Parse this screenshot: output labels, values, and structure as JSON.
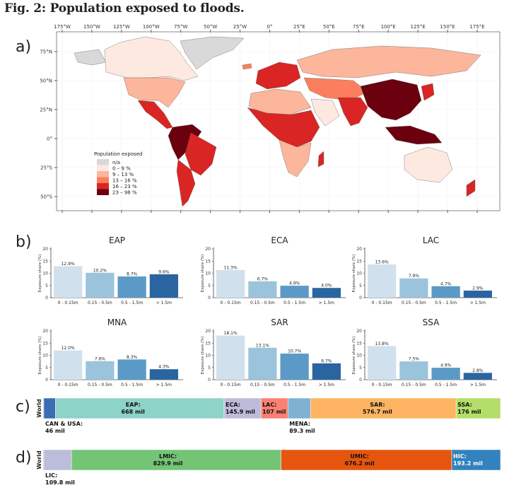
{
  "figure": {
    "title": "Fig. 2: Population exposed to floods.",
    "panel_labels": [
      "a)",
      "b)",
      "c)",
      "d)"
    ]
  },
  "chart_data": [
    {
      "panel": "a",
      "type": "heatmap",
      "subtype": "choropleth-map",
      "title": "",
      "x_ticks": [
        "175°W",
        "150°W",
        "125°W",
        "100°W",
        "75°W",
        "50°W",
        "25°W",
        "0°",
        "25°E",
        "50°E",
        "75°E",
        "100°E",
        "125°E",
        "150°E",
        "175°E"
      ],
      "y_ticks": [
        "75°N",
        "50°N",
        "25°N",
        "0°",
        "25°S",
        "50°S"
      ],
      "legend": {
        "title": "Population exposed",
        "placement": "lower-left",
        "entries": [
          {
            "label": "n/a",
            "color": "#d9d9d9"
          },
          {
            "label": "0 – 9 %",
            "color": "#fee9e1"
          },
          {
            "label": "9 – 13 %",
            "color": "#fcb69b"
          },
          {
            "label": "13 – 16 %",
            "color": "#fb7f5e"
          },
          {
            "label": "16 – 23 %",
            "color": "#d92523"
          },
          {
            "label": "23 – 98 %",
            "color": "#6b010e"
          }
        ]
      },
      "regions": [
        {
          "name": "Greenland",
          "class": 0
        },
        {
          "name": "Alaska",
          "class": 0
        },
        {
          "name": "Canada",
          "class": 1
        },
        {
          "name": "USA",
          "class": 2
        },
        {
          "name": "Mexico & Central America",
          "class": 4
        },
        {
          "name": "Northern South America",
          "class": 5
        },
        {
          "name": "Brazil",
          "class": 4
        },
        {
          "name": "Southern South America",
          "class": 4
        },
        {
          "name": "Europe",
          "class": 4
        },
        {
          "name": "North Africa",
          "class": 2
        },
        {
          "name": "West & Central Africa",
          "class": 4
        },
        {
          "name": "Southern Africa",
          "class": 2
        },
        {
          "name": "Arabian Peninsula",
          "class": 1
        },
        {
          "name": "Russia",
          "class": 2
        },
        {
          "name": "Central Asia",
          "class": 3
        },
        {
          "name": "South Asia",
          "class": 4
        },
        {
          "name": "China & SE Asia",
          "class": 5
        },
        {
          "name": "Maritime SE Asia",
          "class": 5
        },
        {
          "name": "Japan",
          "class": 4
        },
        {
          "name": "Australia",
          "class": 1
        },
        {
          "name": "New Zealand",
          "class": 4
        },
        {
          "name": "Iceland",
          "class": 3
        },
        {
          "name": "Madagascar",
          "class": 4
        }
      ]
    },
    {
      "panel": "b",
      "type": "bar",
      "ylabel": "Exposure share (%)",
      "ylim": [
        0,
        20
      ],
      "yticks": [
        0,
        5,
        10,
        15,
        20
      ],
      "categories": [
        "0 - 0.15m",
        "0.15 - 0.5m",
        "0.5 - 1.5m",
        "> 1.5m"
      ],
      "bar_colors": [
        "#d1e0ed",
        "#9bc4dc",
        "#5b9ac6",
        "#2b65a1"
      ],
      "subplots": [
        {
          "title": "EAP",
          "values": [
            12.9,
            10.2,
            8.7,
            9.6
          ],
          "labels": [
            "12.9%",
            "10.2%",
            "8.7%",
            "9.6%"
          ]
        },
        {
          "title": "ECA",
          "values": [
            11.3,
            6.7,
            4.9,
            4.0
          ],
          "labels": [
            "11.3%",
            "6.7%",
            "4.9%",
            "4.0%"
          ]
        },
        {
          "title": "LAC",
          "values": [
            13.6,
            7.9,
            4.7,
            2.9
          ],
          "labels": [
            "13.6%",
            "7.9%",
            "4.7%",
            "2.9%"
          ]
        },
        {
          "title": "MNA",
          "values": [
            12.0,
            7.6,
            8.3,
            4.3
          ],
          "labels": [
            "12.0%",
            "7.6%",
            "8.3%",
            "4.3%"
          ]
        },
        {
          "title": "SAR",
          "values": [
            18.1,
            13.1,
            10.7,
            6.7
          ],
          "labels": [
            "18.1%",
            "13.1%",
            "10.7%",
            "6.7%"
          ]
        },
        {
          "title": "SSA",
          "values": [
            13.8,
            7.5,
            4.9,
            2.8
          ],
          "labels": [
            "13.8%",
            "7.5%",
            "4.9%",
            "2.8%"
          ]
        }
      ]
    },
    {
      "panel": "c",
      "type": "bar",
      "subtype": "stacked-horizontal",
      "ylabel": "World",
      "unit": "mil",
      "segments": [
        {
          "name": "CAN & USA",
          "value": 46,
          "label": "CAN & USA:",
          "value_label": "46 mil",
          "color": "#3a6fb5",
          "label_position": "below"
        },
        {
          "name": "EAP",
          "value": 668,
          "label": "EAP:",
          "value_label": "668 mil",
          "color": "#8dd3c7",
          "label_position": "inside"
        },
        {
          "name": "ECA",
          "value": 145.9,
          "label": "ECA:",
          "value_label": "145.9 mil",
          "color": "#bebada",
          "label_position": "inside"
        },
        {
          "name": "LAC",
          "value": 107,
          "label": "LAC:",
          "value_label": "107 mil",
          "color": "#fb8072",
          "label_position": "inside"
        },
        {
          "name": "MENA",
          "value": 89.3,
          "label": "MENA:",
          "value_label": "89.3 mil",
          "color": "#80b1d3",
          "label_position": "below"
        },
        {
          "name": "SAR",
          "value": 576.7,
          "label": "SAR:",
          "value_label": "576.7 mil",
          "color": "#fdb462",
          "label_position": "inside"
        },
        {
          "name": "SSA",
          "value": 176,
          "label": "SSA:",
          "value_label": "176 mil",
          "color": "#b3de69",
          "label_position": "inside"
        }
      ]
    },
    {
      "panel": "d",
      "type": "bar",
      "subtype": "stacked-horizontal",
      "ylabel": "World",
      "unit": "mil",
      "segments": [
        {
          "name": "LIC",
          "value": 109.8,
          "label": "LIC:",
          "value_label": "109.8 mil",
          "color": "#bcbddc",
          "label_position": "below"
        },
        {
          "name": "LMIC",
          "value": 829.9,
          "label": "LMIC:",
          "value_label": "829.9 mil",
          "color": "#74c476",
          "label_position": "inside"
        },
        {
          "name": "UMIC",
          "value": 676.2,
          "label": "UMIC:",
          "value_label": "676.2 mil",
          "color": "#e6550d",
          "label_position": "inside"
        },
        {
          "name": "HIC",
          "value": 193.2,
          "label": "HIC:",
          "value_label": "193.2 mil",
          "color": "#3182bd",
          "label_position": "inside",
          "text_color": "#ffffff"
        }
      ]
    }
  ]
}
